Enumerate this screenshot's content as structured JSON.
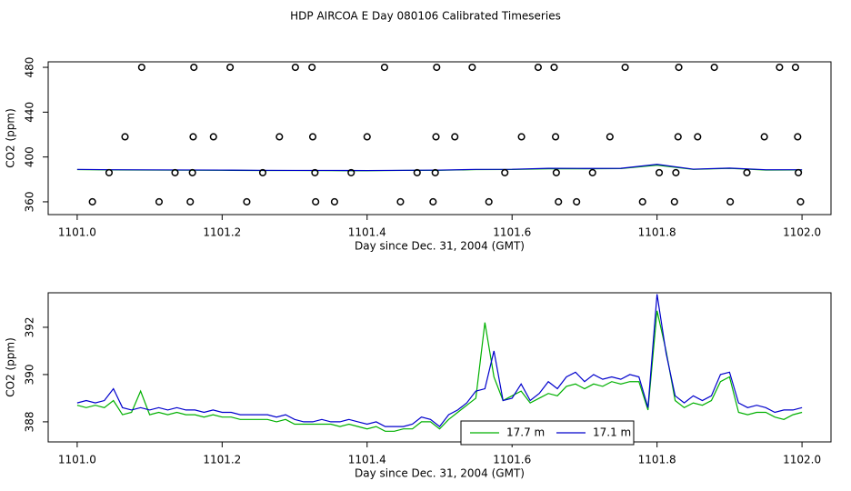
{
  "chart_data": [
    {
      "type": "line",
      "title": "HDP AIRCOA E  Day 080106  Calibrated Timeseries",
      "x_label": "Day since Dec. 31, 2004 (GMT)",
      "y_label": "CO2 (ppm)",
      "xlim": [
        1100.96,
        1102.04
      ],
      "ylim": [
        348.6,
        484.9
      ],
      "xticks": [
        {
          "value": 1101,
          "label": "1101.0"
        },
        {
          "value": 1101.2,
          "label": "1101.2"
        },
        {
          "value": 1101.4,
          "label": "1101.4"
        },
        {
          "value": 1101.6,
          "label": "1101.6"
        },
        {
          "value": 1101.8,
          "label": "1101.8"
        },
        {
          "value": 1102,
          "label": "1102.0"
        }
      ],
      "yticks": [
        360,
        400,
        440,
        480
      ],
      "x": [
        1101,
        1101.05,
        1101.1,
        1101.15,
        1101.2,
        1101.25,
        1101.3,
        1101.35,
        1101.4,
        1101.45,
        1101.5,
        1101.55,
        1101.6,
        1101.65,
        1101.7,
        1101.75,
        1101.8,
        1101.85,
        1101.9,
        1101.95,
        1102
      ],
      "series": [
        {
          "color": "#00b000",
          "values": [
            388.7,
            388.4,
            388.3,
            388.2,
            388.1,
            387.9,
            387.9,
            387.8,
            387.7,
            388.0,
            388.1,
            388.7,
            388.8,
            389.5,
            389.5,
            389.6,
            392.7,
            388.9,
            389.9,
            388.3,
            388.4
          ]
        },
        {
          "color": "#0000cc",
          "values": [
            388.9,
            388.6,
            388.5,
            388.4,
            388.3,
            388.1,
            388.0,
            388.0,
            387.9,
            388.1,
            388.3,
            388.9,
            389.0,
            389.9,
            389.8,
            389.9,
            393.4,
            389.1,
            390.1,
            388.6,
            388.6
          ]
        }
      ],
      "points": {
        "color": "#000000",
        "x": [
          1101.089,
          1101.161,
          1101.211,
          1101.301,
          1101.324,
          1101.424,
          1101.496,
          1101.545,
          1101.636,
          1101.658,
          1101.756,
          1101.83,
          1101.879,
          1101.969,
          1101.991,
          1101.066,
          1101.16,
          1101.188,
          1101.279,
          1101.325,
          1101.4,
          1101.495,
          1101.521,
          1101.613,
          1101.66,
          1101.735,
          1101.829,
          1101.856,
          1101.948,
          1101.994,
          1101.044,
          1101.135,
          1101.159,
          1101.256,
          1101.328,
          1101.378,
          1101.469,
          1101.494,
          1101.59,
          1101.661,
          1101.711,
          1101.803,
          1101.826,
          1101.924,
          1101.995,
          1101.021,
          1101.113,
          1101.156,
          1101.234,
          1101.329,
          1101.355,
          1101.446,
          1101.491,
          1101.568,
          1101.664,
          1101.689,
          1101.78,
          1101.824,
          1101.901,
          1101.998
        ],
        "values": [
          480,
          480,
          480,
          480,
          480,
          480,
          480,
          480,
          480,
          480,
          480,
          480,
          480,
          480,
          480,
          418,
          418,
          418,
          418,
          418,
          418,
          418,
          418,
          418,
          418,
          418,
          418,
          418,
          418,
          418,
          386,
          386,
          386,
          386,
          386,
          386,
          386,
          386,
          386,
          386,
          386,
          386,
          386,
          386,
          386,
          360,
          360,
          360,
          360,
          360,
          360,
          360,
          360,
          360,
          360,
          360,
          360,
          360,
          360,
          360
        ]
      }
    },
    {
      "type": "line",
      "x_label": "Day since Dec. 31, 2004 (GMT)",
      "y_label": "CO2 (ppm)",
      "xlim": [
        1100.96,
        1102.04
      ],
      "ylim": [
        387.15,
        393.46
      ],
      "xticks": [
        {
          "value": 1101,
          "label": "1101.0"
        },
        {
          "value": 1101.2,
          "label": "1101.2"
        },
        {
          "value": 1101.4,
          "label": "1101.4"
        },
        {
          "value": 1101.6,
          "label": "1101.6"
        },
        {
          "value": 1101.8,
          "label": "1101.8"
        },
        {
          "value": 1102,
          "label": "1102.0"
        }
      ],
      "yticks": [
        388,
        390,
        392
      ],
      "legend": "bottom",
      "x": [
        1101,
        1101.0125,
        1101.025,
        1101.0375,
        1101.05,
        1101.0625,
        1101.075,
        1101.0875,
        1101.1,
        1101.1125,
        1101.125,
        1101.1375,
        1101.15,
        1101.1625,
        1101.175,
        1101.1875,
        1101.2,
        1101.2125,
        1101.225,
        1101.2375,
        1101.25,
        1101.2625,
        1101.275,
        1101.2875,
        1101.3,
        1101.3125,
        1101.325,
        1101.3375,
        1101.35,
        1101.3625,
        1101.375,
        1101.3875,
        1101.4,
        1101.4125,
        1101.425,
        1101.4375,
        1101.45,
        1101.4625,
        1101.475,
        1101.4875,
        1101.5,
        1101.5125,
        1101.525,
        1101.5375,
        1101.55,
        1101.5625,
        1101.575,
        1101.5875,
        1101.6,
        1101.6125,
        1101.625,
        1101.6375,
        1101.65,
        1101.6625,
        1101.675,
        1101.6875,
        1101.7,
        1101.7125,
        1101.725,
        1101.7375,
        1101.75,
        1101.7625,
        1101.775,
        1101.7875,
        1101.8,
        1101.8125,
        1101.825,
        1101.8375,
        1101.85,
        1101.8625,
        1101.875,
        1101.8875,
        1101.9,
        1101.9125,
        1101.925,
        1101.9375,
        1101.95,
        1101.9625,
        1101.975,
        1101.9875,
        1102
      ],
      "series": [
        {
          "name": "17.7 m",
          "color": "#00b000",
          "values": [
            388.7,
            388.6,
            388.7,
            388.6,
            388.9,
            388.3,
            388.4,
            389.3,
            388.3,
            388.4,
            388.3,
            388.4,
            388.3,
            388.3,
            388.2,
            388.3,
            388.2,
            388.2,
            388.1,
            388.1,
            388.1,
            388.1,
            388.0,
            388.1,
            387.9,
            387.9,
            387.9,
            387.9,
            387.9,
            387.8,
            387.9,
            387.8,
            387.7,
            387.8,
            387.6,
            387.6,
            387.7,
            387.7,
            388.0,
            388.0,
            387.7,
            388.1,
            388.4,
            388.7,
            389.0,
            392.2,
            389.9,
            388.9,
            389.1,
            389.3,
            388.8,
            389.0,
            389.2,
            389.1,
            389.5,
            389.6,
            389.4,
            389.6,
            389.5,
            389.7,
            389.6,
            389.7,
            389.7,
            388.5,
            392.7,
            391.0,
            388.9,
            388.6,
            388.8,
            388.7,
            388.9,
            389.7,
            389.9,
            388.4,
            388.3,
            388.4,
            388.4,
            388.2,
            388.1,
            388.3,
            388.4
          ]
        },
        {
          "name": "17.1 m",
          "color": "#0000cc",
          "values": [
            388.8,
            388.9,
            388.8,
            388.9,
            389.4,
            388.6,
            388.5,
            388.6,
            388.5,
            388.6,
            388.5,
            388.6,
            388.5,
            388.5,
            388.4,
            388.5,
            388.4,
            388.4,
            388.3,
            388.3,
            388.3,
            388.3,
            388.2,
            388.3,
            388.1,
            388.0,
            388.0,
            388.1,
            388.0,
            388.0,
            388.1,
            388.0,
            387.9,
            388.0,
            387.8,
            387.8,
            387.8,
            387.9,
            388.2,
            388.1,
            387.8,
            388.3,
            388.5,
            388.8,
            389.3,
            389.4,
            391.0,
            388.9,
            389.0,
            389.6,
            388.9,
            389.2,
            389.7,
            389.4,
            389.9,
            390.1,
            389.7,
            390.0,
            389.8,
            389.9,
            389.8,
            390.0,
            389.9,
            388.6,
            393.4,
            390.9,
            389.1,
            388.8,
            389.1,
            388.9,
            389.1,
            390.0,
            390.1,
            388.8,
            388.6,
            388.7,
            388.6,
            388.4,
            388.5,
            388.5,
            388.6
          ]
        }
      ]
    }
  ]
}
